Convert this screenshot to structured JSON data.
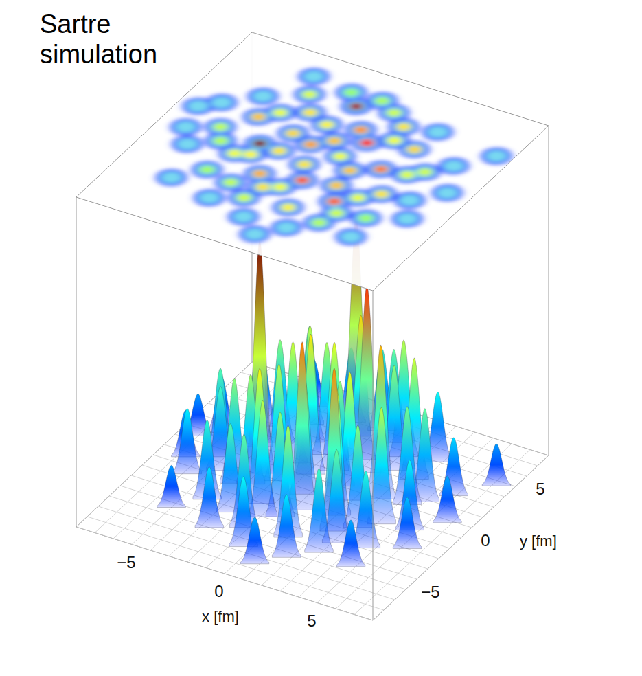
{
  "chart_data": {
    "type": "surface",
    "title": "Sartre simulation",
    "x_label": "x [fm]",
    "y_label": "y [fm]",
    "xlim": [
      -8,
      8
    ],
    "ylim": [
      -8,
      8
    ],
    "xticks": [
      {
        "value": -5,
        "label": "−5"
      },
      0,
      5
    ],
    "yticks": [
      {
        "value": -5,
        "label": "−5"
      },
      0,
      5
    ],
    "grid": true,
    "hotspots": [
      {
        "x": -2.9,
        "y": 0.1,
        "height": 1.0
      },
      {
        "x": -0.6,
        "y": 5.0,
        "height": 0.95
      },
      {
        "x": 1.4,
        "y": 2.6,
        "height": 0.8
      },
      {
        "x": 0.4,
        "y": -1.6,
        "height": 0.72
      },
      {
        "x": 2.6,
        "y": -2.4,
        "height": 0.7
      },
      {
        "x": -1.6,
        "y": -2.1,
        "height": 0.58
      },
      {
        "x": 3.1,
        "y": 1.0,
        "height": 0.66
      },
      {
        "x": -4.1,
        "y": 2.0,
        "height": 0.55
      },
      {
        "x": 4.2,
        "y": -0.8,
        "height": 0.5
      },
      {
        "x": 0.6,
        "y": 3.4,
        "height": 0.62
      },
      {
        "x": -2.2,
        "y": 3.5,
        "height": 0.5
      },
      {
        "x": -3.5,
        "y": -1.2,
        "height": 0.45
      },
      {
        "x": -0.8,
        "y": 1.2,
        "height": 0.6
      },
      {
        "x": 1.9,
        "y": 0.2,
        "height": 0.55
      },
      {
        "x": -1.2,
        "y": -4.2,
        "height": 0.4
      },
      {
        "x": 1.0,
        "y": -3.9,
        "height": 0.48
      },
      {
        "x": 3.6,
        "y": 3.2,
        "height": 0.52
      },
      {
        "x": -3.0,
        "y": 4.8,
        "height": 0.42
      },
      {
        "x": 5.0,
        "y": 1.8,
        "height": 0.4
      },
      {
        "x": -5.2,
        "y": 0.4,
        "height": 0.38
      },
      {
        "x": 2.2,
        "y": 4.6,
        "height": 0.5
      },
      {
        "x": -0.2,
        "y": -0.4,
        "height": 0.5
      },
      {
        "x": -2.0,
        "y": 1.6,
        "height": 0.52
      },
      {
        "x": 0.9,
        "y": 1.0,
        "height": 0.45
      },
      {
        "x": 2.9,
        "y": -4.3,
        "height": 0.36
      },
      {
        "x": -3.9,
        "y": -3.0,
        "height": 0.34
      },
      {
        "x": 4.6,
        "y": -2.9,
        "height": 0.33
      },
      {
        "x": -4.8,
        "y": 3.6,
        "height": 0.3
      },
      {
        "x": 0.2,
        "y": 6.0,
        "height": 0.35
      },
      {
        "x": -1.4,
        "y": 5.9,
        "height": 0.32
      },
      {
        "x": 5.6,
        "y": -0.6,
        "height": 0.3
      },
      {
        "x": -5.8,
        "y": -1.6,
        "height": 0.28
      },
      {
        "x": -0.4,
        "y": -5.6,
        "height": 0.3
      },
      {
        "x": 1.8,
        "y": -5.4,
        "height": 0.27
      },
      {
        "x": 3.8,
        "y": 5.0,
        "height": 0.3
      },
      {
        "x": -2.6,
        "y": -5.0,
        "height": 0.26
      },
      {
        "x": 5.9,
        "y": 2.9,
        "height": 0.25
      },
      {
        "x": -6.2,
        "y": 2.2,
        "height": 0.24
      },
      {
        "x": 6.3,
        "y": -2.0,
        "height": 0.22
      },
      {
        "x": -0.9,
        "y": -3.0,
        "height": 0.5
      },
      {
        "x": 2.0,
        "y": -1.2,
        "height": 0.55
      },
      {
        "x": -2.8,
        "y": -0.9,
        "height": 0.47
      },
      {
        "x": 3.4,
        "y": -1.6,
        "height": 0.44
      },
      {
        "x": -1.0,
        "y": 3.0,
        "height": 0.48
      },
      {
        "x": 1.2,
        "y": 5.4,
        "height": 0.4
      },
      {
        "x": -3.4,
        "y": 2.8,
        "height": 0.44
      },
      {
        "x": 4.4,
        "y": 1.2,
        "height": 0.42
      },
      {
        "x": -4.6,
        "y": -0.6,
        "height": 0.36
      },
      {
        "x": 0.0,
        "y": 2.0,
        "height": 0.55
      },
      {
        "x": -1.8,
        "y": 0.0,
        "height": 0.5
      },
      {
        "x": 2.4,
        "y": 3.4,
        "height": 0.45
      },
      {
        "x": -2.4,
        "y": -3.4,
        "height": 0.38
      },
      {
        "x": 3.2,
        "y": -3.2,
        "height": 0.4
      },
      {
        "x": -0.2,
        "y": -2.6,
        "height": 0.45
      },
      {
        "x": -6.6,
        "y": -0.4,
        "height": 0.2
      },
      {
        "x": 6.8,
        "y": 0.8,
        "height": 0.2
      },
      {
        "x": 7.2,
        "y": 4.6,
        "height": 0.18
      },
      {
        "x": -3.6,
        "y": 6.2,
        "height": 0.2
      },
      {
        "x": 4.8,
        "y": -4.6,
        "height": 0.2
      },
      {
        "x": -5.0,
        "y": -4.4,
        "height": 0.18
      },
      {
        "x": 0.8,
        "y": -6.6,
        "height": 0.2
      },
      {
        "x": -7.0,
        "y": 1.4,
        "height": 0.18
      }
    ]
  }
}
